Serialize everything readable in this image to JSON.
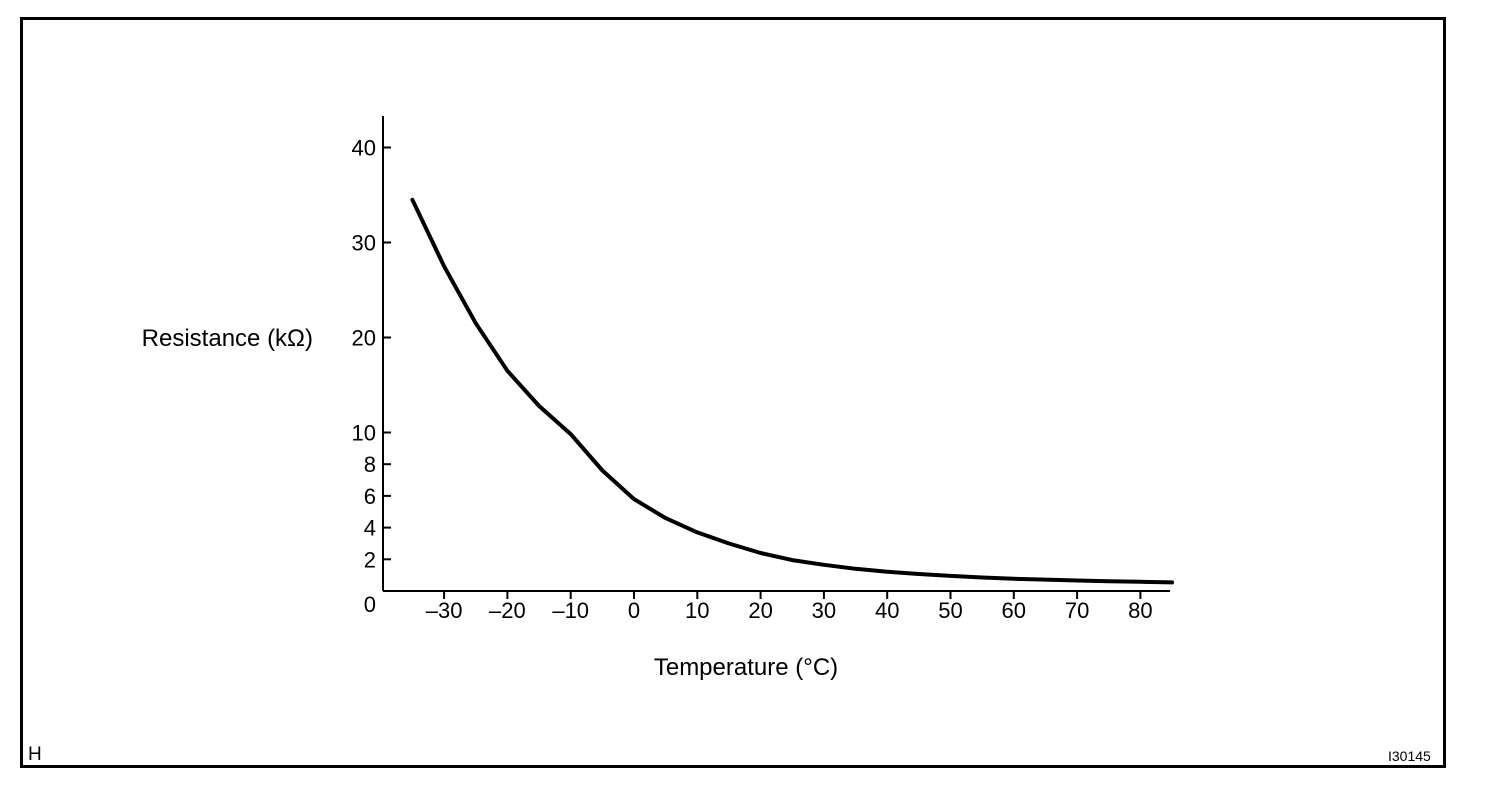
{
  "chart_data": {
    "type": "line",
    "title": "",
    "xlabel": "Temperature (°C)",
    "ylabel": "Resistance (kΩ)",
    "x_ticks": [
      -30,
      -20,
      -10,
      0,
      10,
      20,
      30,
      40,
      50,
      60,
      70,
      80
    ],
    "x_tick_labels": [
      "–30",
      "–20",
      "–10",
      "0",
      "10",
      "20",
      "30",
      "40",
      "50",
      "60",
      "70",
      "80"
    ],
    "y_ticks": [
      2,
      4,
      6,
      8,
      10,
      20,
      30,
      40
    ],
    "y_tick_labels": [
      "2",
      "4",
      "6",
      "8",
      "10",
      "20",
      "30",
      "40"
    ],
    "y_zero_label": "0",
    "xlim": [
      -35,
      85
    ],
    "ylim": [
      0,
      43
    ],
    "grid": false,
    "series": [
      {
        "x": [
          -35,
          -30,
          -25,
          -20,
          -15,
          -10,
          -5,
          0,
          5,
          10,
          15,
          20,
          25,
          30,
          35,
          40,
          45,
          50,
          55,
          60,
          65,
          70,
          75,
          80,
          85
        ],
        "y": [
          34.5,
          27.5,
          21.5,
          16.5,
          12.8,
          9.9,
          7.6,
          5.8,
          4.6,
          3.7,
          3.0,
          2.4,
          1.95,
          1.65,
          1.4,
          1.22,
          1.07,
          0.95,
          0.85,
          0.77,
          0.72,
          0.66,
          0.62,
          0.58,
          0.54
        ]
      }
    ]
  },
  "corner_left": "H",
  "corner_right": "I30145"
}
